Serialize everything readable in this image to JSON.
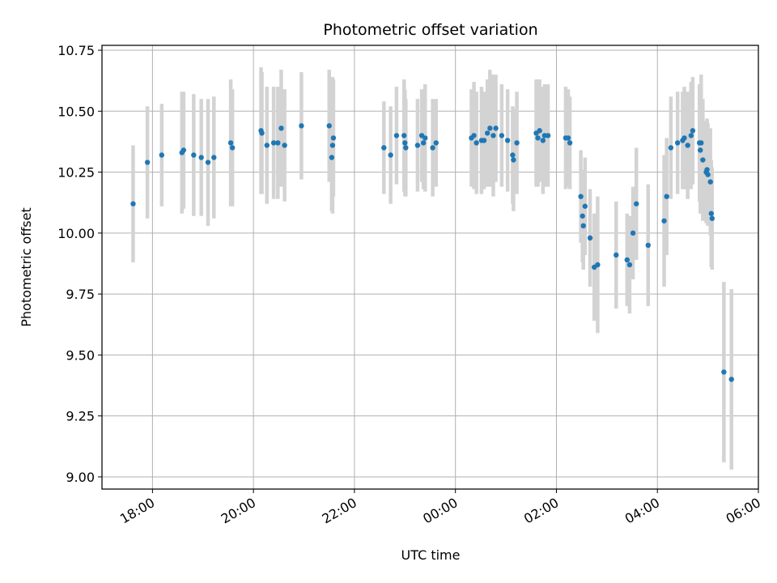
{
  "chart_data": {
    "type": "scatter",
    "title": "Photometric offset variation",
    "xlabel": "UTC time",
    "ylabel": "Photometric offset",
    "x_unit": "UTC time (hours from 00:00, negative = previous evening)",
    "xlim": [
      "17:00",
      "30:00"
    ],
    "ylim": [
      8.95,
      10.77
    ],
    "x_ticks": [
      {
        "t": 18,
        "label": "18:00"
      },
      {
        "t": 20,
        "label": "20:00"
      },
      {
        "t": 22,
        "label": "22:00"
      },
      {
        "t": 24,
        "label": "00:00"
      },
      {
        "t": 26,
        "label": "02:00"
      },
      {
        "t": 28,
        "label": "04:00"
      },
      {
        "t": 30,
        "label": "06:00"
      }
    ],
    "y_ticks": [
      "9.00",
      "9.25",
      "9.50",
      "9.75",
      "10.00",
      "10.25",
      "10.50",
      "10.75"
    ],
    "grid": true,
    "colors": {
      "points": "#1f77b4",
      "errorbars": "#d3d3d3",
      "grid": "#b0b0b0"
    },
    "points": [
      [
        "17:37",
        10.12,
        0.24
      ],
      [
        "17:54",
        10.29,
        0.23
      ],
      [
        "18:11",
        10.32,
        0.21
      ],
      [
        "18:35",
        10.33,
        0.25
      ],
      [
        "18:37",
        10.34,
        0.24
      ],
      [
        "18:49",
        10.32,
        0.25
      ],
      [
        "18:58",
        10.31,
        0.24
      ],
      [
        "19:06",
        10.29,
        0.26
      ],
      [
        "19:13",
        10.31,
        0.25
      ],
      [
        "19:33",
        10.37,
        0.26
      ],
      [
        "19:35",
        10.35,
        0.24
      ],
      [
        "20:09",
        10.42,
        0.26
      ],
      [
        "20:10",
        10.41,
        0.25
      ],
      [
        "20:16",
        10.36,
        0.24
      ],
      [
        "20:24",
        10.37,
        0.23
      ],
      [
        "20:29",
        10.37,
        0.23
      ],
      [
        "20:33",
        10.43,
        0.24
      ],
      [
        "20:37",
        10.36,
        0.23
      ],
      [
        "20:57",
        10.44,
        0.22
      ],
      [
        "21:30",
        10.44,
        0.23
      ],
      [
        "21:33",
        10.31,
        0.22
      ],
      [
        "21:34",
        10.36,
        0.28
      ],
      [
        "21:35",
        10.39,
        0.24
      ],
      [
        "22:35",
        10.35,
        0.19
      ],
      [
        "22:43",
        10.32,
        0.2
      ],
      [
        "22:50",
        10.4,
        0.2
      ],
      [
        "22:59",
        10.4,
        0.23
      ],
      [
        "23:00",
        10.37,
        0.22
      ],
      [
        "23:01",
        10.35,
        0.2
      ],
      [
        "23:15",
        10.36,
        0.19
      ],
      [
        "23:20",
        10.4,
        0.19
      ],
      [
        "23:22",
        10.37,
        0.19
      ],
      [
        "23:24",
        10.39,
        0.22
      ],
      [
        "23:33",
        10.35,
        0.2
      ],
      [
        "23:37",
        10.37,
        0.18
      ],
      [
        "00:19",
        10.39,
        0.2
      ],
      [
        "00:22",
        10.4,
        0.22
      ],
      [
        "00:25",
        10.37,
        0.21
      ],
      [
        "00:31",
        10.38,
        0.22
      ],
      [
        "00:34",
        10.38,
        0.2
      ],
      [
        "00:38",
        10.41,
        0.22
      ],
      [
        "00:41",
        10.43,
        0.24
      ],
      [
        "00:45",
        10.4,
        0.25
      ],
      [
        "00:48",
        10.43,
        0.22
      ],
      [
        "00:55",
        10.4,
        0.21
      ],
      [
        "01:02",
        10.38,
        0.21
      ],
      [
        "01:08",
        10.32,
        0.2
      ],
      [
        "01:09",
        10.3,
        0.21
      ],
      [
        "01:13",
        10.37,
        0.21
      ],
      [
        "01:36",
        10.41,
        0.22
      ],
      [
        "01:38",
        10.39,
        0.2
      ],
      [
        "01:40",
        10.42,
        0.21
      ],
      [
        "01:44",
        10.38,
        0.22
      ],
      [
        "01:46",
        10.4,
        0.21
      ],
      [
        "01:50",
        10.4,
        0.21
      ],
      [
        "02:11",
        10.39,
        0.21
      ],
      [
        "02:14",
        10.39,
        0.2
      ],
      [
        "02:16",
        10.37,
        0.19
      ],
      [
        "02:29",
        10.15,
        0.19
      ],
      [
        "02:31",
        10.07,
        0.19
      ],
      [
        "02:32",
        10.03,
        0.18
      ],
      [
        "02:34",
        10.11,
        0.2
      ],
      [
        "02:40",
        9.98,
        0.2
      ],
      [
        "02:45",
        9.86,
        0.22
      ],
      [
        "02:49",
        9.87,
        0.28
      ],
      [
        "03:11",
        9.91,
        0.22
      ],
      [
        "03:24",
        9.89,
        0.19
      ],
      [
        "03:27",
        9.87,
        0.2
      ],
      [
        "03:31",
        10.0,
        0.19
      ],
      [
        "03:35",
        10.12,
        0.23
      ],
      [
        "03:49",
        9.95,
        0.25
      ],
      [
        "04:08",
        10.05,
        0.27
      ],
      [
        "04:11",
        10.15,
        0.24
      ],
      [
        "04:16",
        10.35,
        0.21
      ],
      [
        "04:24",
        10.37,
        0.21
      ],
      [
        "04:30",
        10.38,
        0.2
      ],
      [
        "04:32",
        10.39,
        0.21
      ],
      [
        "04:36",
        10.36,
        0.22
      ],
      [
        "04:40",
        10.4,
        0.22
      ],
      [
        "04:42",
        10.42,
        0.22
      ],
      [
        "04:50",
        10.37,
        0.24
      ],
      [
        "04:51",
        10.34,
        0.26
      ],
      [
        "04:52",
        10.37,
        0.28
      ],
      [
        "04:54",
        10.3,
        0.25
      ],
      [
        "04:58",
        10.25,
        0.21
      ],
      [
        "04:59",
        10.26,
        0.21
      ],
      [
        "05:00",
        10.24,
        0.21
      ],
      [
        "05:03",
        10.21,
        0.22
      ],
      [
        "05:04",
        10.08,
        0.22
      ],
      [
        "05:05",
        10.06,
        0.21
      ],
      [
        "05:19",
        9.43,
        0.37
      ],
      [
        "05:28",
        9.4,
        0.37
      ]
    ]
  }
}
